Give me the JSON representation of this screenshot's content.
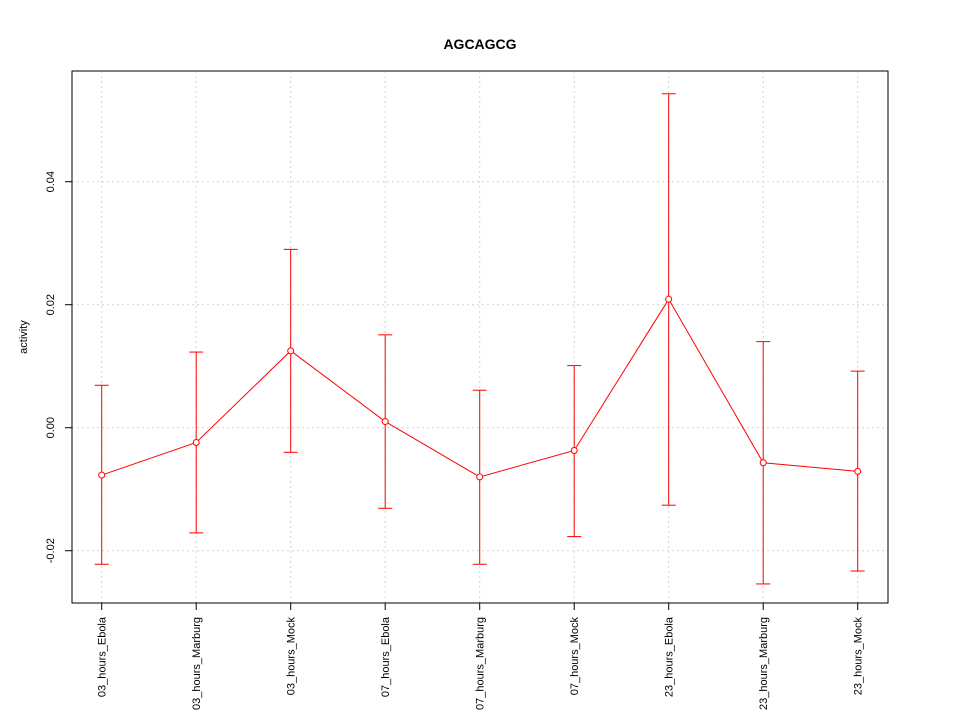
{
  "chart_data": {
    "type": "line",
    "title": "AGCAGCG",
    "xlabel": "",
    "ylabel": "activity",
    "categories": [
      "03_hours_Ebola",
      "03_hours_Marburg",
      "03_hours_Mock",
      "07_hours_Ebola",
      "07_hours_Marburg",
      "07_hours_Mock",
      "23_hours_Ebola",
      "23_hours_Marburg",
      "23_hours_Mock"
    ],
    "series": [
      {
        "values": [
          -0.0077,
          -0.0024,
          0.0125,
          0.001,
          -0.008,
          -0.0037,
          0.0209,
          -0.0057,
          -0.0071
        ],
        "upper": [
          0.0069,
          0.0123,
          0.029,
          0.0151,
          0.0061,
          0.0101,
          0.0543,
          0.014,
          0.0092
        ],
        "lower": [
          -0.0222,
          -0.0171,
          -0.004,
          -0.0131,
          -0.0222,
          -0.0177,
          -0.0126,
          -0.0254,
          -0.0233
        ],
        "color": "#ff0000"
      }
    ],
    "yticks": [
      -0.02,
      0.0,
      0.02,
      0.04
    ],
    "ytick_labels": [
      "-0.02",
      "0.00",
      "0.02",
      "0.04"
    ],
    "ylim": [
      -0.0285,
      0.058
    ],
    "grid": true,
    "grid_color": "#d3d3d3"
  }
}
